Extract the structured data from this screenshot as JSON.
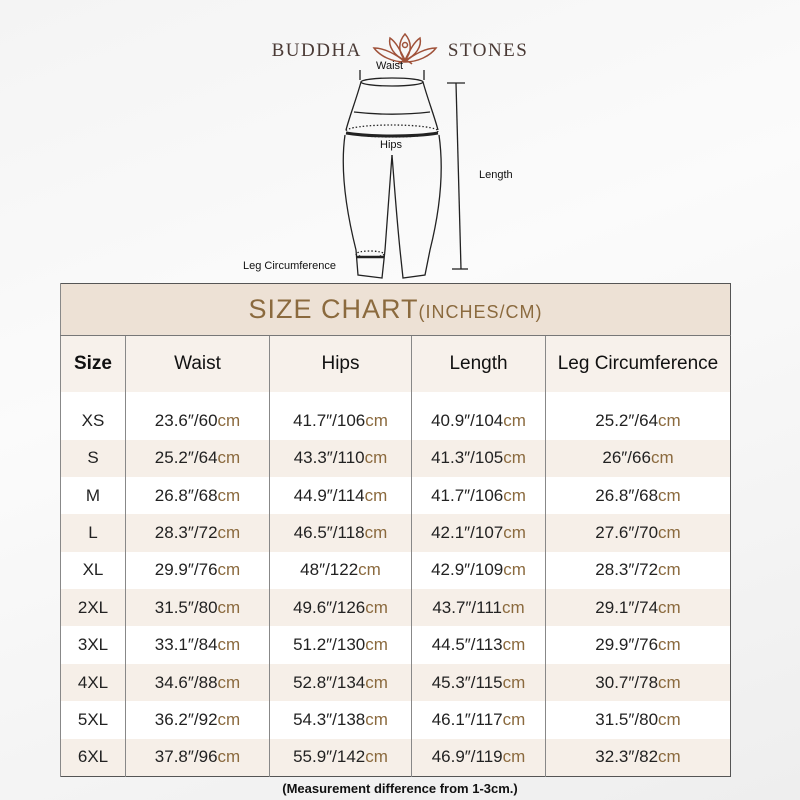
{
  "brand": {
    "left": "BUDDHA",
    "right": "STONES"
  },
  "diagram": {
    "waist": "Waist",
    "hips": "Hips",
    "length": "Length",
    "leg": "Leg Circumference"
  },
  "chart": {
    "title": "SIZE CHART",
    "title_units": "(INCHES/CM)",
    "headers": [
      "Size",
      "Waist",
      "Hips",
      "Length",
      "Leg Circumference"
    ],
    "unit": "cm",
    "rows": [
      {
        "size": "XS",
        "cells": [
          "23.6″/60",
          "41.7″/106",
          "40.9″/104",
          "25.2″/64"
        ]
      },
      {
        "size": "S",
        "cells": [
          "25.2″/64",
          "43.3″/110",
          "41.3″/105",
          "26″/66"
        ]
      },
      {
        "size": "M",
        "cells": [
          "26.8″/68",
          "44.9″/114",
          "41.7″/106",
          "26.8″/68"
        ]
      },
      {
        "size": "L",
        "cells": [
          "28.3″/72",
          "46.5″/118",
          "42.1″/107",
          "27.6″/70"
        ]
      },
      {
        "size": "XL",
        "cells": [
          "29.9″/76",
          "48″/122",
          "42.9″/109",
          "28.3″/72"
        ]
      },
      {
        "size": "2XL",
        "cells": [
          "31.5″/80",
          "49.6″/126",
          "43.7″/111",
          "29.1″/74"
        ]
      },
      {
        "size": "3XL",
        "cells": [
          "33.1″/84",
          "51.2″/130",
          "44.5″/113",
          "29.9″/76"
        ]
      },
      {
        "size": "4XL",
        "cells": [
          "34.6″/88",
          "52.8″/134",
          "45.3″/115",
          "30.7″/78"
        ]
      },
      {
        "size": "5XL",
        "cells": [
          "36.2″/92",
          "54.3″/138",
          "46.1″/117",
          "31.5″/80"
        ]
      },
      {
        "size": "6XL",
        "cells": [
          "37.8″/96",
          "55.9″/142",
          "46.9″/119",
          "32.3″/82"
        ]
      }
    ]
  },
  "note": "(Measurement difference from 1-3cm.)",
  "colors": {
    "accent": "#8b6a3e",
    "title_bg": "#ede1d5",
    "row_alt": "#f6efe8"
  }
}
